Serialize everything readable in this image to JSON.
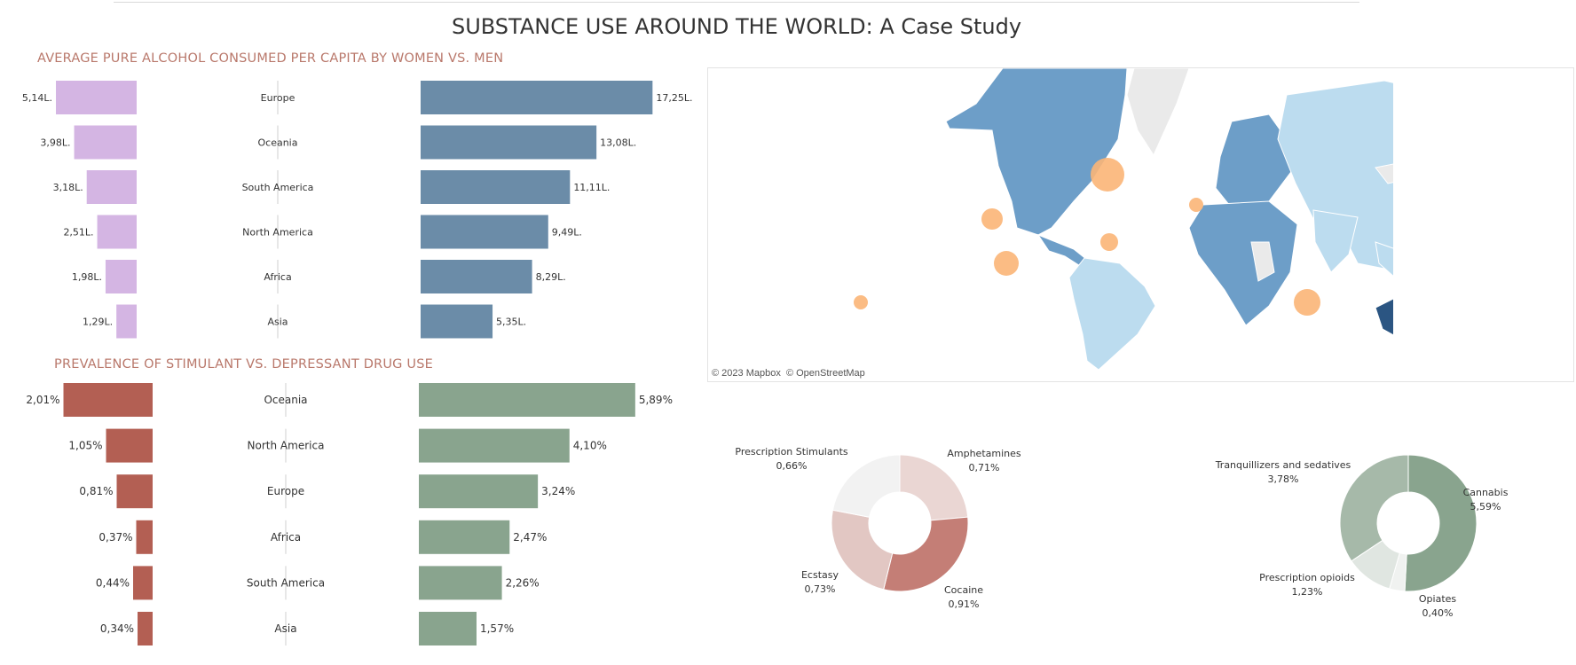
{
  "page": {
    "title": "SUBSTANCE USE AROUND THE WORLD: A Case Study"
  },
  "alcohol_section_title": "AVERAGE PURE ALCOHOL CONSUMED PER CAPITA BY WOMEN VS. MEN",
  "drug_section_title": "PREVALENCE OF STIMULANT VS. DEPRESSANT DRUG USE",
  "map": {
    "attribution_mapbox": "© 2023 Mapbox",
    "attribution_osm": "© OpenStreetMap"
  },
  "colors": {
    "women": "#d4b5e3",
    "men": "#6b8ca8",
    "stimulant": "#b35f53",
    "depressant": "#89a48e",
    "map_ocean": "#ffffff",
    "map_low": "#bcdcef",
    "map_mid": "#6d9ec8",
    "map_high": "#2b5582",
    "map_nodata": "#eaeaea",
    "map_bubble": "#fbb577"
  },
  "chart_data": [
    {
      "id": "alcohol",
      "type": "bar",
      "categories": [
        "Europe",
        "Oceania",
        "South America",
        "North America",
        "Africa",
        "Asia"
      ],
      "series": [
        {
          "values": [
            5.14,
            3.98,
            3.18,
            2.51,
            1.98,
            1.29
          ],
          "labels": [
            "5,14L.",
            "3,98L.",
            "3,18L.",
            "2,51L.",
            "1,98L.",
            "1,29L."
          ]
        },
        {
          "values": [
            17.25,
            13.08,
            11.11,
            9.49,
            8.29,
            5.35
          ],
          "labels": [
            "17,25L.",
            "13,08L.",
            "11,11L.",
            "9,49L.",
            "8,29L.",
            "5,35L."
          ]
        }
      ]
    },
    {
      "id": "drugs",
      "type": "bar",
      "categories": [
        "Oceania",
        "North America",
        "Europe",
        "Africa",
        "South America",
        "Asia"
      ],
      "series": [
        {
          "values": [
            2.01,
            1.05,
            0.81,
            0.37,
            0.44,
            0.34
          ],
          "labels": [
            "2,01%",
            "1,05%",
            "0,81%",
            "0,37%",
            "0,44%",
            "0,34%"
          ]
        },
        {
          "values": [
            5.89,
            4.1,
            3.24,
            2.47,
            2.26,
            1.57
          ],
          "labels": [
            "5,89%",
            "4,10%",
            "3,24%",
            "2,47%",
            "2,26%",
            "1,57%"
          ]
        }
      ]
    },
    {
      "id": "stimulants_donut",
      "type": "pie",
      "slices": [
        {
          "name": "Amphetamines",
          "value": 0.71,
          "label": "0,71%",
          "color": "#ead6d3"
        },
        {
          "name": "Cocaine",
          "value": 0.91,
          "label": "0,91%",
          "color": "#c47e76"
        },
        {
          "name": "Ecstasy",
          "value": 0.73,
          "label": "0,73%",
          "color": "#e2c7c3"
        },
        {
          "name": "Prescription Stimulants",
          "value": 0.66,
          "label": "0,66%",
          "color": "#f2f2f2"
        }
      ]
    },
    {
      "id": "depressants_donut",
      "type": "pie",
      "slices": [
        {
          "name": "Cannabis",
          "value": 5.59,
          "label": "5,59%",
          "color": "#89a48e"
        },
        {
          "name": "Opiates",
          "value": 0.4,
          "label": "0,40%",
          "color": "#f0f2f0"
        },
        {
          "name": "Prescription opioids",
          "value": 1.23,
          "label": "1,23%",
          "color": "#e0e6e1"
        },
        {
          "name": "Tranquillizers and sedatives",
          "value": 3.78,
          "label": "3,78%",
          "color": "#a6b9a9"
        }
      ]
    }
  ]
}
